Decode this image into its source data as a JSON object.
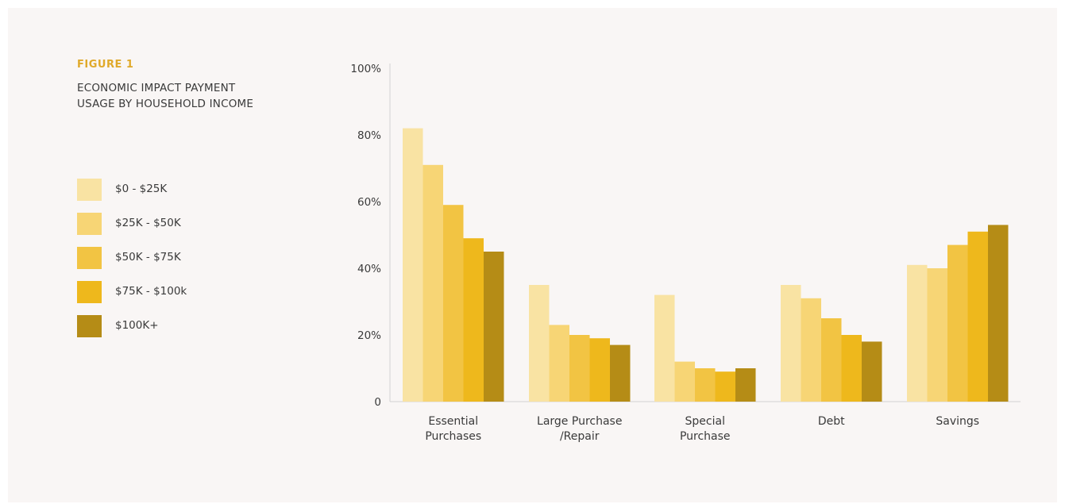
{
  "figure": {
    "label": "FIGURE 1",
    "title_line1": "ECONOMIC IMPACT PAYMENT",
    "title_line2": "USAGE BY HOUSEHOLD INCOME"
  },
  "colors": {
    "background": "#f9f6f5",
    "axis": "#d2d2d2",
    "text": "#3a3a3a",
    "accent": "#e0a92a"
  },
  "chart_data": {
    "type": "bar",
    "categories": [
      [
        "Essential",
        "Purchases"
      ],
      [
        "Large Purchase",
        "/Repair"
      ],
      [
        "Special",
        "Purchase"
      ],
      [
        "Debt"
      ],
      [
        "Savings"
      ]
    ],
    "series": [
      {
        "name": "$0 - $25K",
        "color": "#f9e3a3",
        "values": [
          82,
          35,
          32,
          35,
          41
        ]
      },
      {
        "name": "$25K - $50K",
        "color": "#f7d575",
        "values": [
          71,
          23,
          12,
          31,
          40
        ]
      },
      {
        "name": "$50K - $75K",
        "color": "#f2c443",
        "values": [
          59,
          20,
          10,
          25,
          47
        ]
      },
      {
        "name": "$75K - $100k",
        "color": "#eeb81c",
        "values": [
          49,
          19,
          9,
          20,
          51
        ]
      },
      {
        "name": "$100K+",
        "color": "#b58c16",
        "values": [
          45,
          17,
          10,
          18,
          53
        ]
      }
    ],
    "ylim": [
      0,
      100
    ],
    "yticks": [
      {
        "value": 0,
        "label": "0"
      },
      {
        "value": 20,
        "label": "20%"
      },
      {
        "value": 40,
        "label": "40%"
      },
      {
        "value": 60,
        "label": "60%"
      },
      {
        "value": 80,
        "label": "80%"
      },
      {
        "value": 100,
        "label": "100%"
      }
    ],
    "legend_position": "left",
    "grid": false
  }
}
